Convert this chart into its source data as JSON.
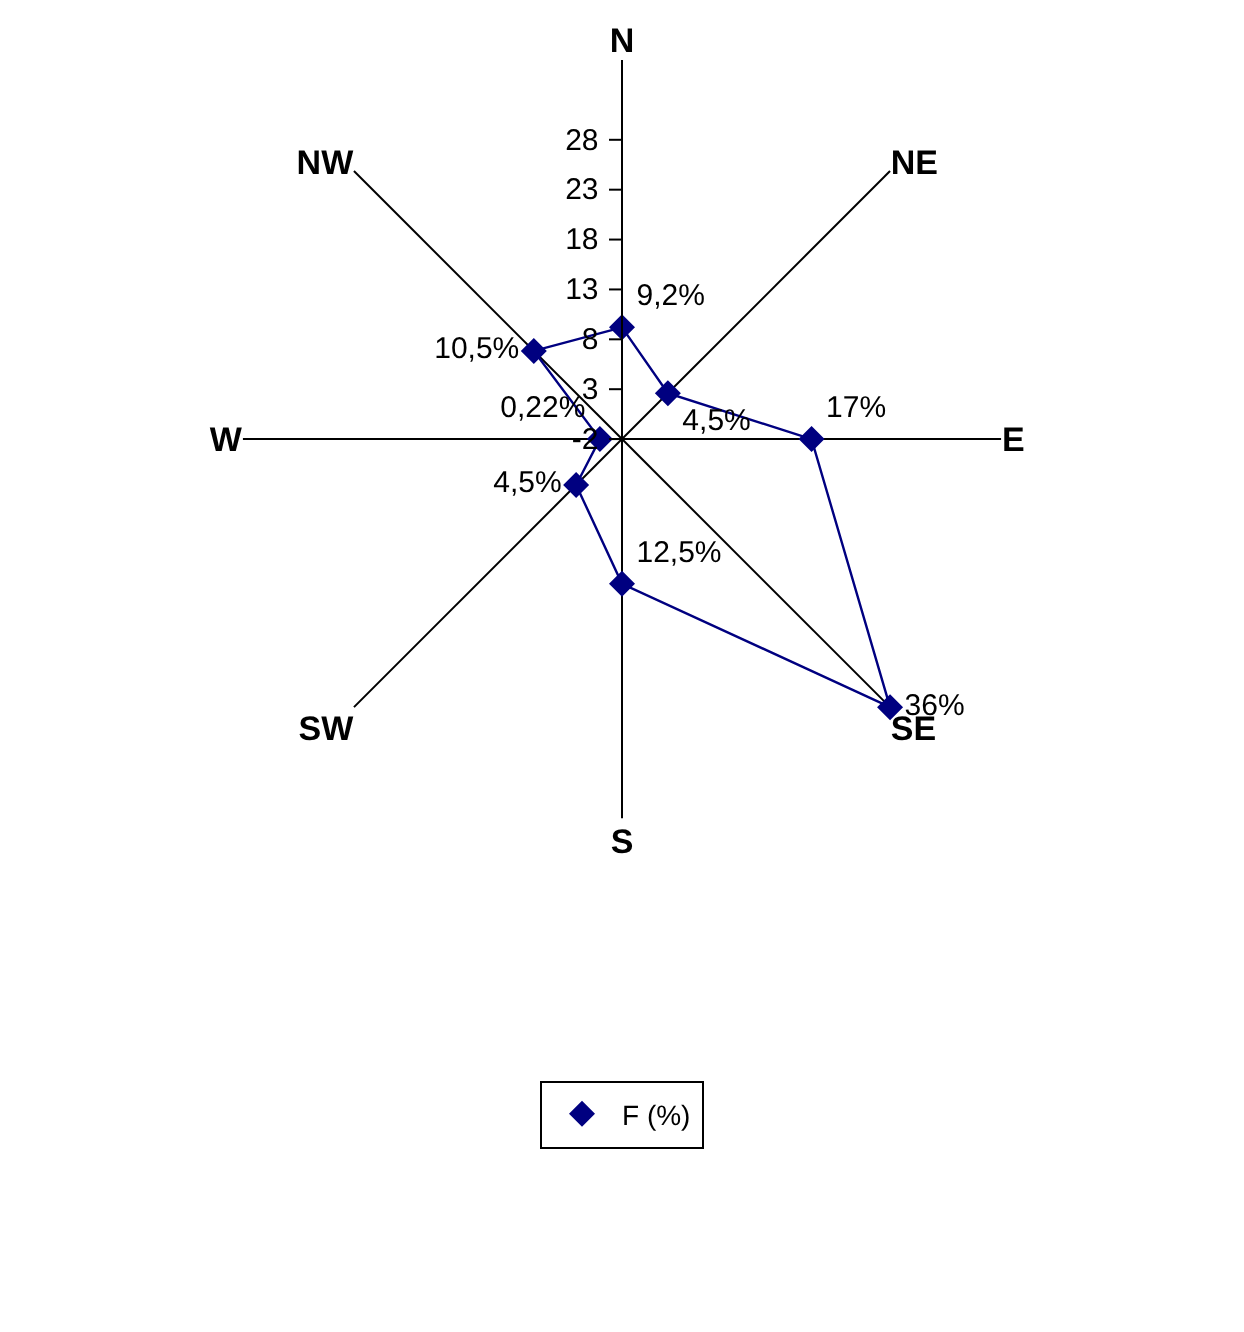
{
  "chart_data": {
    "type": "radar",
    "categories": [
      "N",
      "NE",
      "E",
      "SE",
      "S",
      "SW",
      "W",
      "NW"
    ],
    "series": [
      {
        "name": "F (%)",
        "color": "#000080",
        "values": [
          9.2,
          4.5,
          17,
          36,
          12.5,
          4.5,
          0.22,
          10.5
        ],
        "value_labels": [
          "9,2%",
          "4,5%",
          "17%",
          "36%",
          "12,5%",
          "4,5%",
          "0,22%",
          "10,5%"
        ]
      }
    ],
    "ylim": [
      -2,
      36
    ],
    "yticks": [
      -2,
      3,
      8,
      13,
      18,
      23,
      28
    ],
    "grid": false,
    "legend": "bottom",
    "marker": "diamond",
    "line_style": "solid"
  }
}
